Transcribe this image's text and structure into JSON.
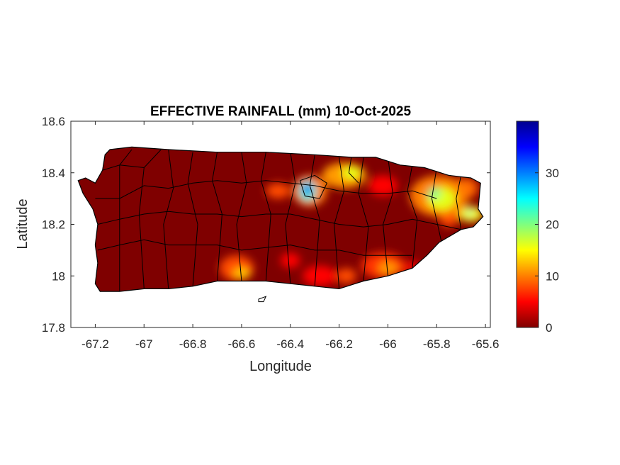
{
  "figure": {
    "title": "EFFECTIVE RAINFALL (mm) 10-Oct-2025",
    "xlabel": "Longitude",
    "ylabel": "Latitude"
  },
  "map": {
    "xlim": [
      -67.3,
      -65.58
    ],
    "ylim": [
      17.8,
      18.6
    ],
    "x_ticks": [
      -67.2,
      -67,
      -66.8,
      -66.6,
      -66.4,
      -66.2,
      -66,
      -65.8,
      -65.6
    ],
    "y_ticks": [
      17.8,
      18,
      18.2,
      18.4,
      18.6
    ],
    "x_tick_labels": [
      "-67.2",
      "-67",
      "-66.8",
      "-66.6",
      "-66.4",
      "-66.2",
      "-66",
      "-65.8",
      "-65.6"
    ],
    "y_tick_labels": [
      "17.8",
      "18",
      "18.2",
      "18.4",
      "18.6"
    ],
    "base_color": "#7f0000",
    "boundary_color": "#000000",
    "island_outline": [
      [
        -67.27,
        18.37
      ],
      [
        -67.24,
        18.38
      ],
      [
        -67.2,
        18.36
      ],
      [
        -67.17,
        18.41
      ],
      [
        -67.16,
        18.47
      ],
      [
        -67.14,
        18.49
      ],
      [
        -67.05,
        18.5
      ],
      [
        -66.9,
        18.49
      ],
      [
        -66.7,
        18.48
      ],
      [
        -66.5,
        18.48
      ],
      [
        -66.3,
        18.47
      ],
      [
        -66.15,
        18.46
      ],
      [
        -66.05,
        18.46
      ],
      [
        -65.95,
        18.43
      ],
      [
        -65.85,
        18.42
      ],
      [
        -65.75,
        18.39
      ],
      [
        -65.66,
        18.38
      ],
      [
        -65.62,
        18.36
      ],
      [
        -65.63,
        18.26
      ],
      [
        -65.61,
        18.23
      ],
      [
        -65.65,
        18.19
      ],
      [
        -65.7,
        18.18
      ],
      [
        -65.79,
        18.13
      ],
      [
        -65.84,
        18.08
      ],
      [
        -65.9,
        18.03
      ],
      [
        -66,
        18.0
      ],
      [
        -66.1,
        17.98
      ],
      [
        -66.2,
        17.95
      ],
      [
        -66.3,
        17.96
      ],
      [
        -66.4,
        17.97
      ],
      [
        -66.5,
        17.98
      ],
      [
        -66.6,
        17.98
      ],
      [
        -66.7,
        17.98
      ],
      [
        -66.8,
        17.96
      ],
      [
        -66.9,
        17.95
      ],
      [
        -67.0,
        17.95
      ],
      [
        -67.1,
        17.94
      ],
      [
        -67.18,
        17.94
      ],
      [
        -67.2,
        17.97
      ],
      [
        -67.19,
        18.05
      ],
      [
        -67.2,
        18.12
      ],
      [
        -67.19,
        18.2
      ],
      [
        -67.21,
        18.26
      ],
      [
        -67.25,
        18.32
      ]
    ],
    "small_island": [
      [
        -66.53,
        17.91
      ],
      [
        -66.5,
        17.92
      ],
      [
        -66.51,
        17.9
      ],
      [
        -66.53,
        17.9
      ]
    ],
    "municipal_boundaries": [
      [
        [
          -67.17,
          18.41
        ],
        [
          -67.1,
          18.43
        ],
        [
          -67.05,
          18.49
        ]
      ],
      [
        [
          -67.1,
          18.43
        ],
        [
          -67.0,
          18.42
        ],
        [
          -66.93,
          18.49
        ]
      ],
      [
        [
          -67.2,
          18.3
        ],
        [
          -67.1,
          18.3
        ],
        [
          -67.0,
          18.35
        ],
        [
          -66.9,
          18.34
        ],
        [
          -66.8,
          18.36
        ],
        [
          -66.7,
          18.37
        ],
        [
          -66.6,
          18.36
        ],
        [
          -66.5,
          18.37
        ],
        [
          -66.4,
          18.36
        ],
        [
          -66.3,
          18.35
        ],
        [
          -66.2,
          18.33
        ],
        [
          -66.1,
          18.32
        ],
        [
          -66.0,
          18.32
        ],
        [
          -65.9,
          18.33
        ],
        [
          -65.8,
          18.3
        ]
      ],
      [
        [
          -67.19,
          18.2
        ],
        [
          -67.1,
          18.22
        ],
        [
          -67.0,
          18.24
        ],
        [
          -66.9,
          18.25
        ],
        [
          -66.8,
          18.24
        ],
        [
          -66.7,
          18.24
        ],
        [
          -66.6,
          18.23
        ],
        [
          -66.5,
          18.24
        ],
        [
          -66.4,
          18.24
        ],
        [
          -66.3,
          18.22
        ],
        [
          -66.2,
          18.2
        ],
        [
          -66.1,
          18.19
        ],
        [
          -66.0,
          18.2
        ],
        [
          -65.9,
          18.22
        ],
        [
          -65.8,
          18.2
        ],
        [
          -65.7,
          18.18
        ]
      ],
      [
        [
          -67.19,
          18.1
        ],
        [
          -67.1,
          18.12
        ],
        [
          -67.0,
          18.14
        ],
        [
          -66.9,
          18.12
        ],
        [
          -66.8,
          18.12
        ],
        [
          -66.7,
          18.12
        ],
        [
          -66.6,
          18.1
        ],
        [
          -66.5,
          18.11
        ],
        [
          -66.4,
          18.12
        ],
        [
          -66.3,
          18.1
        ],
        [
          -66.2,
          18.1
        ],
        [
          -66.1,
          18.08
        ],
        [
          -66.0,
          18.08
        ],
        [
          -65.9,
          18.08
        ]
      ],
      [
        [
          -67.1,
          18.43
        ],
        [
          -67.1,
          17.94
        ]
      ],
      [
        [
          -67.0,
          18.42
        ],
        [
          -67.02,
          18.24
        ],
        [
          -67.0,
          17.95
        ]
      ],
      [
        [
          -66.9,
          18.49
        ],
        [
          -66.88,
          18.34
        ],
        [
          -66.92,
          18.2
        ],
        [
          -66.9,
          17.95
        ]
      ],
      [
        [
          -66.8,
          18.48
        ],
        [
          -66.82,
          18.36
        ],
        [
          -66.78,
          18.2
        ],
        [
          -66.8,
          17.96
        ]
      ],
      [
        [
          -66.7,
          18.48
        ],
        [
          -66.72,
          18.37
        ],
        [
          -66.68,
          18.24
        ],
        [
          -66.7,
          17.98
        ]
      ],
      [
        [
          -66.6,
          18.48
        ],
        [
          -66.58,
          18.36
        ],
        [
          -66.62,
          18.2
        ],
        [
          -66.6,
          17.98
        ]
      ],
      [
        [
          -66.5,
          18.48
        ],
        [
          -66.52,
          18.37
        ],
        [
          -66.48,
          18.24
        ],
        [
          -66.5,
          17.98
        ]
      ],
      [
        [
          -66.4,
          18.48
        ],
        [
          -66.38,
          18.36
        ],
        [
          -66.42,
          18.2
        ],
        [
          -66.4,
          17.97
        ]
      ],
      [
        [
          -66.3,
          18.47
        ],
        [
          -66.32,
          18.35
        ],
        [
          -66.28,
          18.22
        ],
        [
          -66.3,
          17.96
        ]
      ],
      [
        [
          -66.2,
          18.46
        ],
        [
          -66.18,
          18.33
        ],
        [
          -66.22,
          18.2
        ],
        [
          -66.2,
          17.95
        ]
      ],
      [
        [
          -66.1,
          18.46
        ],
        [
          -66.12,
          18.32
        ],
        [
          -66.08,
          18.19
        ],
        [
          -66.1,
          17.98
        ]
      ],
      [
        [
          -66.0,
          18.46
        ],
        [
          -65.98,
          18.32
        ],
        [
          -66.02,
          18.2
        ],
        [
          -66.0,
          18.0
        ]
      ],
      [
        [
          -65.9,
          18.43
        ],
        [
          -65.92,
          18.33
        ],
        [
          -65.88,
          18.22
        ],
        [
          -65.9,
          18.03
        ]
      ],
      [
        [
          -65.8,
          18.42
        ],
        [
          -65.82,
          18.3
        ],
        [
          -65.78,
          18.13
        ]
      ],
      [
        [
          -65.7,
          18.39
        ],
        [
          -65.72,
          18.3
        ],
        [
          -65.7,
          18.18
        ]
      ],
      [
        [
          -66.36,
          18.37
        ],
        [
          -66.3,
          18.39
        ],
        [
          -66.25,
          18.36
        ],
        [
          -66.28,
          18.3
        ],
        [
          -66.34,
          18.31
        ],
        [
          -66.36,
          18.37
        ]
      ],
      [
        [
          -66.15,
          18.46
        ],
        [
          -66.16,
          18.4
        ],
        [
          -66.12,
          18.36
        ]
      ]
    ],
    "rainfall_blobs": [
      {
        "lon": -66.45,
        "lat": 18.33,
        "rx": 0.05,
        "ry": 0.03,
        "value": 8
      },
      {
        "lon": -66.32,
        "lat": 18.33,
        "rx": 0.07,
        "ry": 0.06,
        "value": 10
      },
      {
        "lon": -66.33,
        "lat": 18.33,
        "rx": 0.035,
        "ry": 0.04,
        "value": 24
      },
      {
        "lon": -66.33,
        "lat": 18.335,
        "rx": 0.018,
        "ry": 0.022,
        "value": 36
      },
      {
        "lon": -66.18,
        "lat": 18.39,
        "rx": 0.09,
        "ry": 0.05,
        "value": 11
      },
      {
        "lon": -66.15,
        "lat": 18.4,
        "rx": 0.04,
        "ry": 0.025,
        "value": 16
      },
      {
        "lon": -66.02,
        "lat": 18.35,
        "rx": 0.06,
        "ry": 0.04,
        "value": 5
      },
      {
        "lon": -65.79,
        "lat": 18.31,
        "rx": 0.12,
        "ry": 0.08,
        "value": 10
      },
      {
        "lon": -65.78,
        "lat": 18.3,
        "rx": 0.06,
        "ry": 0.045,
        "value": 16
      },
      {
        "lon": -65.81,
        "lat": 18.32,
        "rx": 0.025,
        "ry": 0.02,
        "value": 21
      },
      {
        "lon": -65.68,
        "lat": 18.34,
        "rx": 0.05,
        "ry": 0.04,
        "value": 9
      },
      {
        "lon": -65.66,
        "lat": 18.24,
        "rx": 0.05,
        "ry": 0.03,
        "value": 15
      },
      {
        "lon": -65.665,
        "lat": 18.245,
        "rx": 0.015,
        "ry": 0.01,
        "value": 23
      },
      {
        "lon": -65.75,
        "lat": 18.23,
        "rx": 0.04,
        "ry": 0.04,
        "value": 8
      },
      {
        "lon": -66.62,
        "lat": 18.03,
        "rx": 0.07,
        "ry": 0.05,
        "value": 8
      },
      {
        "lon": -66.6,
        "lat": 18.01,
        "rx": 0.035,
        "ry": 0.02,
        "value": 13
      },
      {
        "lon": -66.4,
        "lat": 18.06,
        "rx": 0.04,
        "ry": 0.03,
        "value": 5
      },
      {
        "lon": -66.28,
        "lat": 18.0,
        "rx": 0.07,
        "ry": 0.04,
        "value": 5
      },
      {
        "lon": -66.17,
        "lat": 18.0,
        "rx": 0.04,
        "ry": 0.03,
        "value": 8
      },
      {
        "lon": -66.02,
        "lat": 18.04,
        "rx": 0.09,
        "ry": 0.05,
        "value": 7
      },
      {
        "lon": -66.0,
        "lat": 18.03,
        "rx": 0.04,
        "ry": 0.025,
        "value": 11
      },
      {
        "lon": -65.9,
        "lat": 18.03,
        "rx": 0.04,
        "ry": 0.03,
        "value": 4
      }
    ]
  },
  "colorbar": {
    "colormap": "jet",
    "range": [
      0,
      40
    ],
    "ticks": [
      0,
      10,
      20,
      30
    ],
    "tick_labels": [
      "0",
      "10",
      "20",
      "30"
    ],
    "stops": [
      "#7f0000",
      "#ff0000",
      "#ff7f00",
      "#ffff00",
      "#7fff7f",
      "#00ffff",
      "#007fff",
      "#0000ff",
      "#00008f"
    ]
  }
}
